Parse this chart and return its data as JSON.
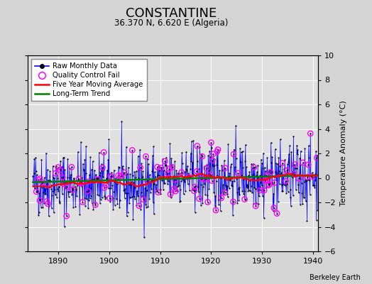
{
  "title": "CONSTANTINE",
  "subtitle": "36.370 N, 6.620 E (Algeria)",
  "ylabel": "Temperature Anomaly (°C)",
  "credit": "Berkeley Earth",
  "xlim": [
    1884,
    1941
  ],
  "ylim": [
    -6,
    10
  ],
  "yticks": [
    -6,
    -4,
    -2,
    0,
    2,
    4,
    6,
    8,
    10
  ],
  "xticks": [
    1890,
    1900,
    1910,
    1920,
    1930,
    1940
  ],
  "bg_color": "#d4d4d4",
  "plot_bg_color": "#e0e0e0",
  "seed": 42,
  "n_months": 672,
  "start_year": 1885.0,
  "raw_line_color": "blue",
  "raw_dot_color": "black",
  "qc_fail_color": "magenta",
  "moving_avg_color": "red",
  "trend_color": "green"
}
